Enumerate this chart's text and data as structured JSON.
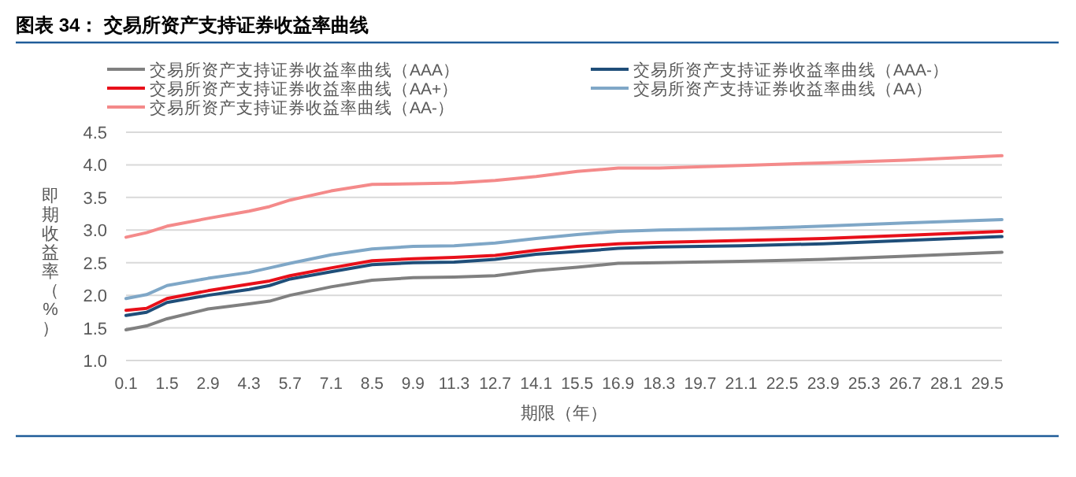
{
  "chart_data": {
    "type": "line",
    "title": "图表 34：  交易所资产支持证券收益率曲线",
    "xlabel": "期限（年）",
    "ylabel": "即期收益率（%）",
    "x": [
      0.1,
      0.8,
      1.5,
      2.9,
      4.3,
      5.0,
      5.7,
      7.1,
      8.5,
      9.9,
      11.3,
      12.7,
      14.1,
      15.5,
      16.9,
      18.3,
      21.1,
      23.9,
      26.7,
      30
    ],
    "series": [
      {
        "name": "交易所资产支持证券收益率曲线（AAA）",
        "color": "#808080",
        "values": [
          1.47,
          1.53,
          1.64,
          1.79,
          1.87,
          1.91,
          2.0,
          2.13,
          2.23,
          2.27,
          2.28,
          2.3,
          2.38,
          2.43,
          2.49,
          2.5,
          2.52,
          2.55,
          2.6,
          2.66
        ]
      },
      {
        "name": "交易所资产支持证券收益率曲线（AAA-）",
        "color": "#1f4e79",
        "values": [
          1.69,
          1.74,
          1.89,
          2.0,
          2.09,
          2.15,
          2.25,
          2.36,
          2.47,
          2.5,
          2.51,
          2.55,
          2.63,
          2.67,
          2.72,
          2.74,
          2.76,
          2.79,
          2.84,
          2.9
        ]
      },
      {
        "name": "交易所资产支持证券收益率曲线（AA+）",
        "color": "#e8101a",
        "values": [
          1.77,
          1.8,
          1.95,
          2.07,
          2.17,
          2.22,
          2.3,
          2.42,
          2.53,
          2.56,
          2.58,
          2.61,
          2.69,
          2.75,
          2.79,
          2.81,
          2.84,
          2.87,
          2.92,
          2.98
        ]
      },
      {
        "name": "交易所资产支持证券收益率曲线（AA）",
        "color": "#7fa7c7",
        "values": [
          1.95,
          2.01,
          2.15,
          2.26,
          2.35,
          2.42,
          2.49,
          2.62,
          2.71,
          2.75,
          2.76,
          2.8,
          2.87,
          2.93,
          2.98,
          3.0,
          3.02,
          3.06,
          3.11,
          3.16
        ]
      },
      {
        "name": "交易所资产支持证券收益率曲线（AA-）",
        "color": "#f48a8a",
        "values": [
          2.89,
          2.96,
          3.06,
          3.18,
          3.29,
          3.36,
          3.46,
          3.6,
          3.7,
          3.71,
          3.72,
          3.76,
          3.82,
          3.9,
          3.95,
          3.95,
          3.99,
          4.03,
          4.07,
          4.14
        ]
      }
    ],
    "xlim": [
      0.1,
      30
    ],
    "xticks": [
      0.1,
      1.5,
      2.9,
      4.3,
      5.7,
      7.1,
      8.5,
      9.9,
      11.3,
      12.7,
      14.1,
      15.5,
      16.9,
      18.3,
      19.7,
      21.1,
      22.5,
      23.9,
      25.3,
      26.7,
      28.1,
      29.5
    ],
    "ylim": [
      1.0,
      4.5
    ],
    "yticks": [
      {
        "value": 1.0,
        "label": "1.0"
      },
      1.5,
      {
        "value": 2.0,
        "label": "2.0"
      },
      2.5,
      {
        "value": 3.0,
        "label": "3.0"
      },
      3.5,
      {
        "value": 4.0,
        "label": "4.0"
      },
      4.5
    ],
    "grid": "y",
    "legend": "top",
    "marker": "none",
    "line_style": "solid"
  }
}
